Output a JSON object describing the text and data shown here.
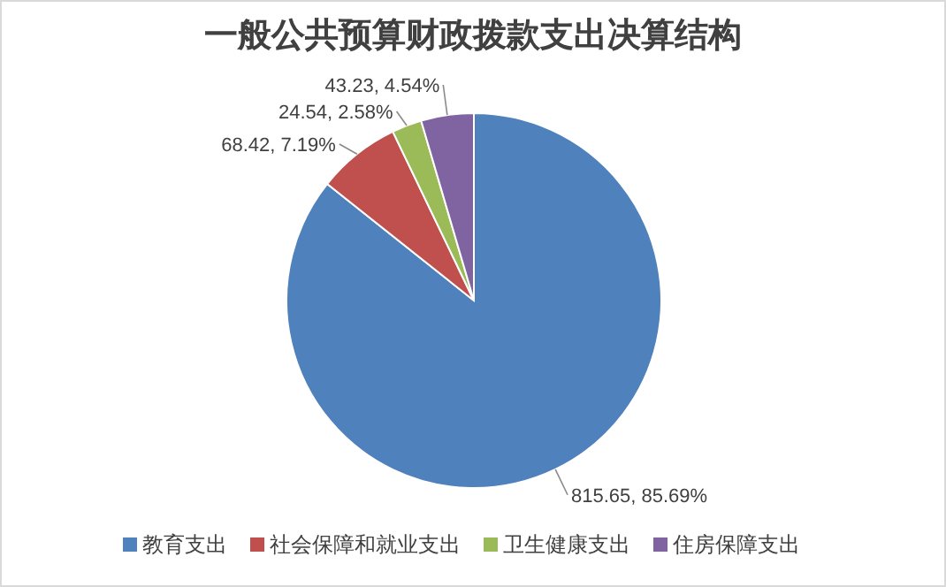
{
  "chart_data": {
    "type": "pie",
    "title": "一般公共预算财政拨款支出决算结构",
    "categories": [
      "教育支出",
      "社会保障和就业支出",
      "卫生健康支出",
      "住房保障支出"
    ],
    "values": [
      815.65,
      68.42,
      24.54,
      43.23
    ],
    "value_labels": [
      "815.65, 85.69%",
      "68.42, 7.19%",
      "24.54, 2.58%",
      "43.23, 4.54%"
    ],
    "colors": [
      "#4f81bd",
      "#c0504d",
      "#9bbb59",
      "#8064a2"
    ],
    "legend": "bottom"
  }
}
